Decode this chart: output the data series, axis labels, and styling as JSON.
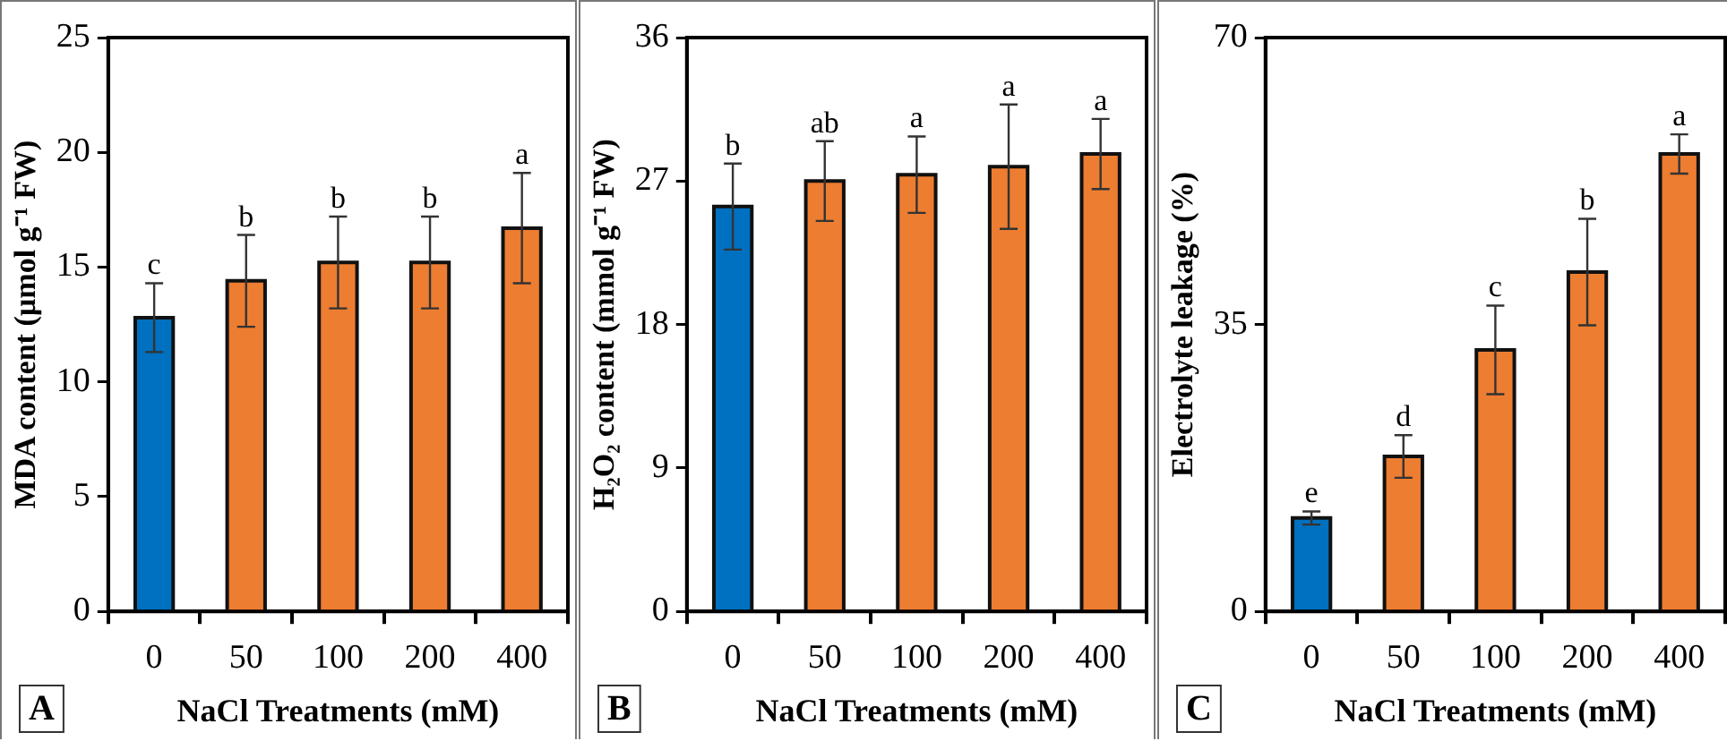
{
  "chart_data": [
    {
      "type": "bar",
      "ylabel": "MDA content (µmol g⁻¹ FW)",
      "xlabel": "NaCl Treatments (mM)",
      "categories": [
        "0",
        "50",
        "100",
        "200",
        "400"
      ],
      "values": [
        12.8,
        14.4,
        15.2,
        15.2,
        16.7
      ],
      "colors": [
        "#0070c0",
        "#ed7d31",
        "#ed7d31",
        "#ed7d31",
        "#ed7d31"
      ],
      "errors": [
        1.5,
        2.0,
        2.0,
        2.0,
        2.4
      ],
      "ylim": [
        0,
        25
      ],
      "yticks": [
        0,
        5,
        10,
        15,
        20,
        25
      ],
      "annotations": [
        {
          "text": "c",
          "x": "0",
          "y": 14.3
        },
        {
          "text": "b",
          "x": "50",
          "y": 16.4
        },
        {
          "text": "b",
          "x": "100",
          "y": 17.2
        },
        {
          "text": "b",
          "x": "200",
          "y": 17.2
        },
        {
          "text": "a",
          "x": "400",
          "y": 19.1
        },
        "A"
      ]
    },
    {
      "type": "bar",
      "ylabel": "H₂O₂ content (mmol g⁻¹ FW)",
      "xlabel": "NaCl Treatments (mM)",
      "categories": [
        "0",
        "50",
        "100",
        "200",
        "400"
      ],
      "values": [
        25.4,
        27.0,
        27.4,
        27.9,
        28.7
      ],
      "colors": [
        "#0070c0",
        "#ed7d31",
        "#ed7d31",
        "#ed7d31",
        "#ed7d31"
      ],
      "errors": [
        2.7,
        2.5,
        2.4,
        3.9,
        2.2
      ],
      "ylim": [
        0,
        36
      ],
      "yticks": [
        0,
        9,
        18,
        27,
        36
      ],
      "annotations": [
        {
          "text": "b",
          "x": "0",
          "y": 28.1
        },
        {
          "text": "ab",
          "x": "50",
          "y": 29.5
        },
        {
          "text": "a",
          "x": "100",
          "y": 29.8
        },
        {
          "text": "a",
          "x": "200",
          "y": 31.8
        },
        {
          "text": "a",
          "x": "400",
          "y": 30.9
        },
        "B"
      ]
    },
    {
      "type": "bar",
      "ylabel": "Electrolyte leakage (%)",
      "xlabel": "NaCl Treatments (mM)",
      "categories": [
        "0",
        "50",
        "100",
        "200",
        "400"
      ],
      "values": [
        11.4,
        18.9,
        31.9,
        41.4,
        55.8
      ],
      "colors": [
        "#0070c0",
        "#ed7d31",
        "#ed7d31",
        "#ed7d31",
        "#ed7d31"
      ],
      "errors": [
        0.8,
        2.6,
        5.4,
        6.5,
        2.4
      ],
      "ylim": [
        0,
        70
      ],
      "yticks": [
        0,
        35,
        70
      ],
      "annotations": [
        {
          "text": "e",
          "x": "0",
          "y": 12.2
        },
        {
          "text": "d",
          "x": "50",
          "y": 21.5
        },
        {
          "text": "c",
          "x": "100",
          "y": 37.3
        },
        {
          "text": "b",
          "x": "200",
          "y": 47.9
        },
        {
          "text": "a",
          "x": "400",
          "y": 58.2
        },
        "C"
      ]
    }
  ]
}
